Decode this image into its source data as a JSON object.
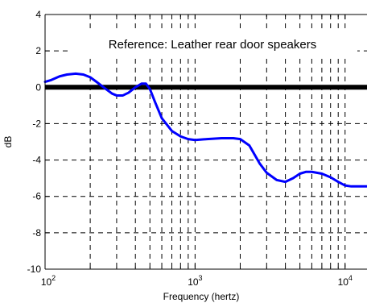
{
  "chart_data": {
    "type": "line",
    "title": "",
    "annotation": "Reference: Leather rear door speakers",
    "xlabel": "Frequency (hertz)",
    "ylabel": "dB",
    "x_scale": "log",
    "xlim": [
      100,
      14000
    ],
    "ylim": [
      -10,
      4
    ],
    "grid": true,
    "x_tick_labels": [
      {
        "base": "10",
        "exp": "2",
        "value": 100
      },
      {
        "base": "10",
        "exp": "3",
        "value": 1000
      },
      {
        "base": "10",
        "exp": "4",
        "value": 10000
      }
    ],
    "y_ticks": [
      -10,
      -8,
      -6,
      -4,
      -2,
      0,
      2,
      4
    ],
    "y_tick_labels": [
      "-10",
      "-8",
      "-6",
      "-4",
      "-2",
      "0",
      "2",
      "4"
    ],
    "reference_line": {
      "y": 0,
      "color": "#000000"
    },
    "series": [
      {
        "color": "#0000ff",
        "x": [
          100,
          110,
          125,
          140,
          160,
          180,
          200,
          220,
          250,
          280,
          300,
          330,
          360,
          400,
          440,
          470,
          500,
          540,
          600,
          700,
          800,
          900,
          1000,
          1200,
          1500,
          1800,
          2000,
          2300,
          2700,
          3000,
          3500,
          4000,
          4500,
          5000,
          5500,
          6000,
          7000,
          8000,
          9000,
          10000,
          11000,
          12000,
          14000
        ],
        "y": [
          0.3,
          0.4,
          0.6,
          0.7,
          0.75,
          0.7,
          0.55,
          0.3,
          -0.05,
          -0.35,
          -0.45,
          -0.45,
          -0.3,
          0.0,
          0.2,
          0.2,
          -0.1,
          -0.8,
          -1.7,
          -2.4,
          -2.7,
          -2.85,
          -2.9,
          -2.85,
          -2.8,
          -2.8,
          -2.85,
          -3.2,
          -4.2,
          -4.7,
          -5.1,
          -5.2,
          -5.0,
          -4.75,
          -4.65,
          -4.65,
          -4.75,
          -4.95,
          -5.2,
          -5.4,
          -5.45,
          -5.45,
          -5.45
        ]
      }
    ]
  }
}
